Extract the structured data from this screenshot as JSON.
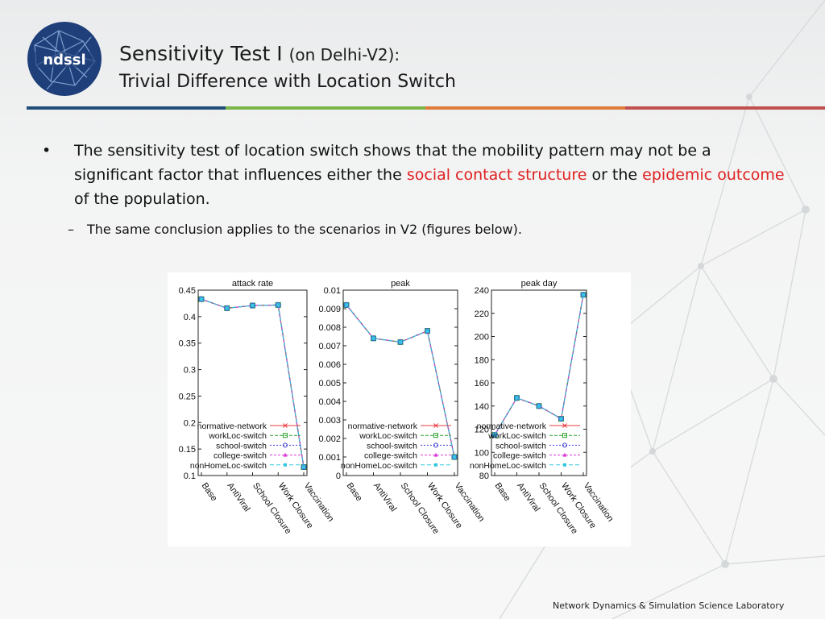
{
  "header": {
    "title_main": "Sensitivity Test I",
    "title_paren": "(on Delhi-V2):",
    "subtitle": "Trivial Difference with Location Switch",
    "logo_text": "ndssl",
    "rule_colors": [
      "#1f4e79",
      "#7ab648",
      "#e07b39",
      "#c0504d"
    ]
  },
  "content": {
    "bullet_text_1": "The sensitivity test of location switch shows that the mobility pattern may not be a significant factor that influences either the ",
    "highlight_1": "social contact structure",
    "bullet_text_2": " or the ",
    "highlight_2": "epidemic outcome",
    "bullet_text_3": " of the population.",
    "sub_bullet": "The same conclusion applies to the scenarios in V2 (figures below).",
    "highlight_color": "#e02020"
  },
  "footer": {
    "label": "Network Dynamics & Simulation Science Laboratory"
  },
  "chart_data": [
    {
      "type": "line",
      "title": "attack rate",
      "categories": [
        "Base",
        "AntiViral",
        "School Closure",
        "Work Closure",
        "Vaccination"
      ],
      "ylim": [
        0.1,
        0.45
      ],
      "yticks": [
        "0.1",
        "0.15",
        "0.2",
        "0.25",
        "0.3",
        "0.35",
        "0.4",
        "0.45"
      ],
      "series": [
        {
          "name": "normative-network",
          "values": [
            0.433,
            0.416,
            0.421,
            0.422,
            0.116
          ]
        },
        {
          "name": "workLoc-switch",
          "values": [
            0.433,
            0.416,
            0.421,
            0.422,
            0.116
          ]
        },
        {
          "name": "school-switch",
          "values": [
            0.433,
            0.416,
            0.421,
            0.422,
            0.116
          ]
        },
        {
          "name": "college-switch",
          "values": [
            0.433,
            0.416,
            0.421,
            0.422,
            0.116
          ]
        },
        {
          "name": "nonHomeLoc-switch",
          "values": [
            0.433,
            0.416,
            0.421,
            0.422,
            0.116
          ]
        }
      ],
      "legend": "bottom-right"
    },
    {
      "type": "line",
      "title": "peak",
      "categories": [
        "Base",
        "AntiViral",
        "School Closure",
        "Work Closure",
        "Vaccination"
      ],
      "ylim": [
        0,
        0.01
      ],
      "yticks": [
        "0",
        "0.001",
        "0.002",
        "0.003",
        "0.004",
        "0.005",
        "0.006",
        "0.007",
        "0.008",
        "0.009",
        "0.01"
      ],
      "series": [
        {
          "name": "normative-network",
          "values": [
            0.0092,
            0.0074,
            0.0072,
            0.0078,
            0.001
          ]
        },
        {
          "name": "workLoc-switch",
          "values": [
            0.0092,
            0.0074,
            0.0072,
            0.0078,
            0.001
          ]
        },
        {
          "name": "school-switch",
          "values": [
            0.0092,
            0.0074,
            0.0072,
            0.0078,
            0.001
          ]
        },
        {
          "name": "college-switch",
          "values": [
            0.0092,
            0.0074,
            0.0072,
            0.0078,
            0.001
          ]
        },
        {
          "name": "nonHomeLoc-switch",
          "values": [
            0.0092,
            0.0074,
            0.0072,
            0.0078,
            0.001
          ]
        }
      ],
      "legend": "bottom-right"
    },
    {
      "type": "line",
      "title": "peak day",
      "categories": [
        "Base",
        "AntiViral",
        "School Closure",
        "Work Closure",
        "Vaccination"
      ],
      "ylim": [
        80,
        240
      ],
      "yticks": [
        "80",
        "100",
        "120",
        "140",
        "160",
        "180",
        "200",
        "220",
        "240"
      ],
      "series": [
        {
          "name": "normative-network",
          "values": [
            115,
            147,
            140,
            129,
            236
          ]
        },
        {
          "name": "workLoc-switch",
          "values": [
            115,
            147,
            140,
            129,
            236
          ]
        },
        {
          "name": "school-switch",
          "values": [
            115,
            147,
            140,
            129,
            236
          ]
        },
        {
          "name": "college-switch",
          "values": [
            115,
            147,
            140,
            129,
            236
          ]
        },
        {
          "name": "nonHomeLoc-switch",
          "values": [
            115,
            147,
            140,
            129,
            236
          ]
        }
      ],
      "legend": "bottom-right"
    }
  ]
}
